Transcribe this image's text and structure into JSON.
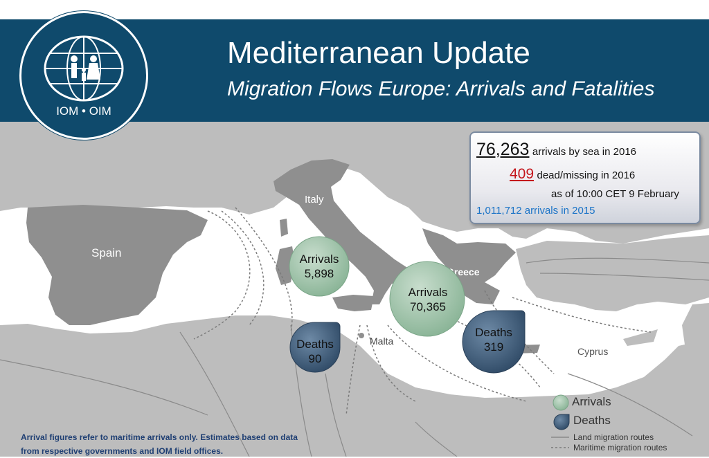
{
  "header": {
    "title": "Mediterranean Update",
    "subtitle": "Migration Flows Europe: Arrivals and Fatalities",
    "logo_text": "IOM • OIM"
  },
  "stats": {
    "arrivals_2016": "76,263",
    "arrivals_2016_label": "arrivals by sea in 2016",
    "dead_2016": "409",
    "dead_2016_label": "dead/missing in 2016",
    "as_of": "as of 10:00 CET 9 February",
    "arrivals_2015": "1,011,712 arrivals in 2015"
  },
  "places": {
    "spain": "Spain",
    "italy": "Italy",
    "greece": "Greece",
    "malta": "Malta",
    "cyprus": "Cyprus"
  },
  "bubbles": {
    "italy_arrivals_label": "Arrivals",
    "italy_arrivals_value": "5,898",
    "italy_deaths_label": "Deaths",
    "italy_deaths_value": "90",
    "greece_arrivals_label": "Arrivals",
    "greece_arrivals_value": "70,365",
    "greece_deaths_label": "Deaths",
    "greece_deaths_value": "319"
  },
  "legend": {
    "arrivals": "Arrivals",
    "deaths": "Deaths",
    "land_routes": "Land migration routes",
    "maritime_routes": "Maritime migration routes"
  },
  "footnote": {
    "line1": "Arrival figures  refer to maritime arrivals only. Estimates based on data",
    "line2": "from respective governments and IOM field offices."
  },
  "colors": {
    "banner": "#0f4a6c",
    "land": "#b9b9b9",
    "land_dark": "#8c8c8c",
    "sea": "#ffffff",
    "arrivals_bubble": "#8fb89c",
    "deaths_bubble": "#3a5673",
    "dead_number": "#c4161c",
    "arrivals_2015": "#1a73c7"
  }
}
